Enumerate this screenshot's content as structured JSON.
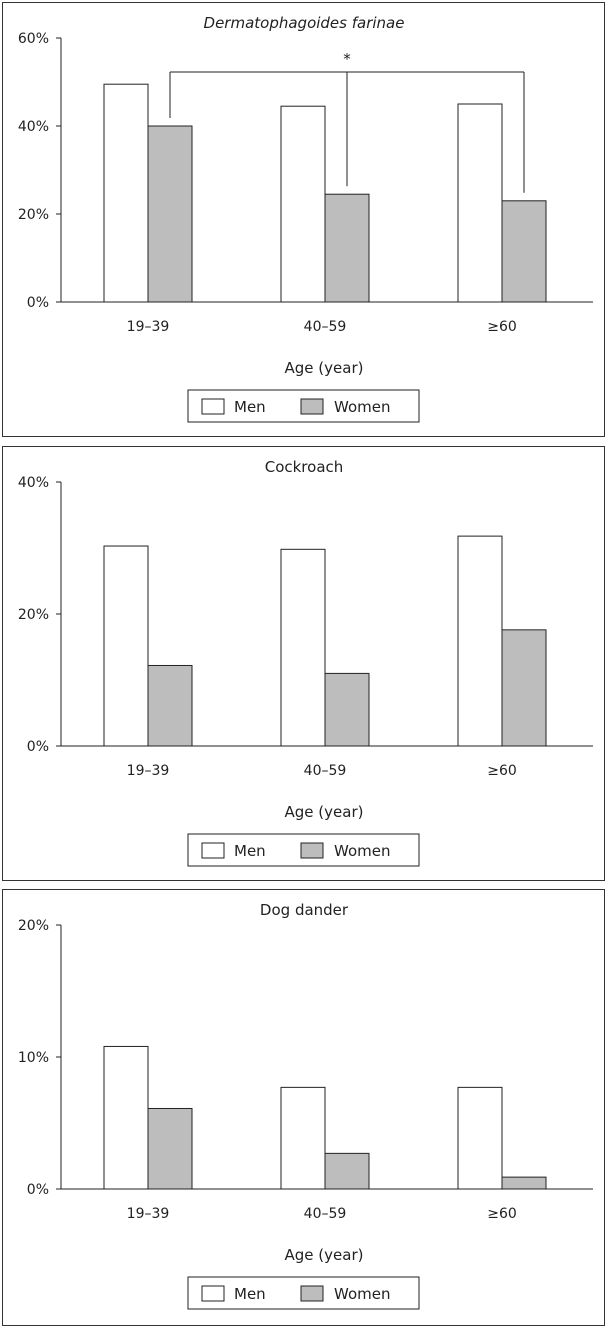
{
  "colors": {
    "men": "#ffffff",
    "women": "#bdbdbd",
    "stroke": "#222222"
  },
  "chart_data": [
    {
      "type": "bar",
      "title": "Dermatophagoides farinae",
      "title_italic": true,
      "categories": [
        "19–39",
        "40–59",
        "≥60"
      ],
      "xlabel": "Age (year)",
      "ylim": [
        0,
        60
      ],
      "yticks": [
        0,
        20,
        40,
        60
      ],
      "ytick_labels": [
        "0%",
        "20%",
        "40%",
        "60%"
      ],
      "series": [
        {
          "name": "Men",
          "values": [
            49.5,
            44.5,
            45
          ]
        },
        {
          "name": "Women",
          "values": [
            40,
            24.5,
            23
          ]
        }
      ],
      "legend": {
        "placement": "bottom-center",
        "entries": [
          "Men",
          "Women"
        ]
      },
      "annotation": {
        "text": "*",
        "type": "significance-bracket",
        "connects": [
          "19–39",
          "40–59",
          "≥60"
        ],
        "series": "Women"
      }
    },
    {
      "type": "bar",
      "title": "Cockroach",
      "title_italic": false,
      "categories": [
        "19–39",
        "40–59",
        "≥60"
      ],
      "xlabel": "Age (year)",
      "ylim": [
        0,
        40
      ],
      "yticks": [
        0,
        20,
        40
      ],
      "ytick_labels": [
        "0%",
        "20%",
        "40%"
      ],
      "series": [
        {
          "name": "Men",
          "values": [
            30.3,
            29.8,
            31.8
          ]
        },
        {
          "name": "Women",
          "values": [
            12.2,
            11,
            17.6
          ]
        }
      ],
      "legend": {
        "placement": "bottom-center",
        "entries": [
          "Men",
          "Women"
        ]
      }
    },
    {
      "type": "bar",
      "title": "Dog dander",
      "title_italic": false,
      "categories": [
        "19–39",
        "40–59",
        "≥60"
      ],
      "xlabel": "Age (year)",
      "ylim": [
        0,
        20
      ],
      "yticks": [
        0,
        10,
        20
      ],
      "ytick_labels": [
        "0%",
        "10%",
        "20%"
      ],
      "series": [
        {
          "name": "Men",
          "values": [
            10.8,
            7.7,
            7.7
          ]
        },
        {
          "name": "Women",
          "values": [
            6.1,
            2.7,
            0.9
          ]
        }
      ],
      "legend": {
        "placement": "bottom-center",
        "entries": [
          "Men",
          "Women"
        ]
      }
    }
  ]
}
